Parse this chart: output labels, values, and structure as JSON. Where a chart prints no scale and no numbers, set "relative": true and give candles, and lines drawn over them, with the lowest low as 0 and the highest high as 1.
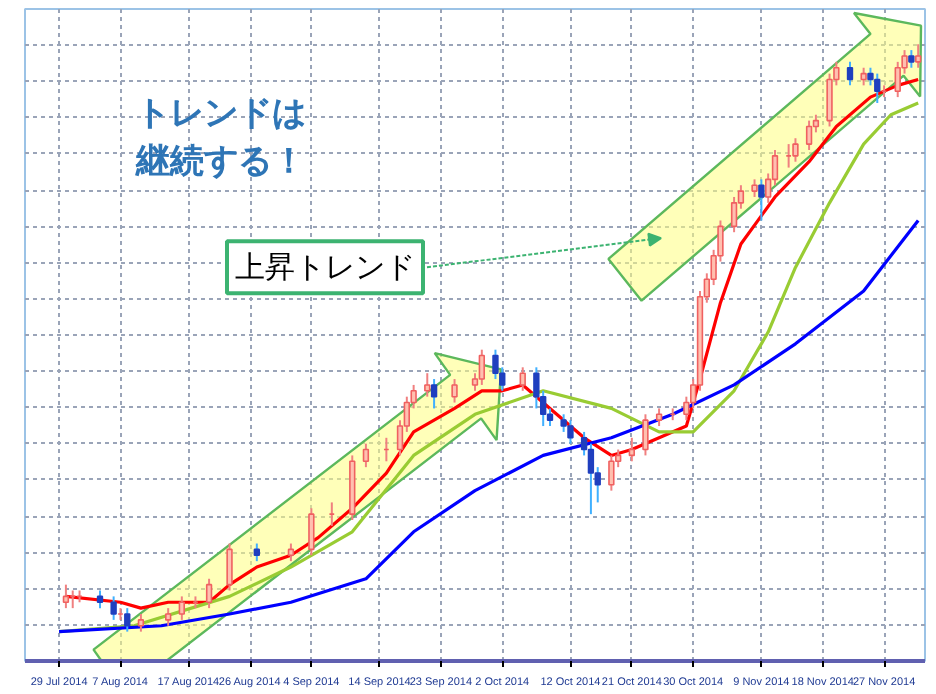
{
  "chart_data": {
    "type": "candlestick",
    "relative": true,
    "grid": true,
    "xlim": [
      "2014-07-24",
      "2014-12-03"
    ],
    "xticks": [
      {
        "value": "2014-07-29",
        "label": "29 Jul 2014"
      },
      {
        "value": "2014-08-07",
        "label": "7 Aug 2014"
      },
      {
        "value": "2014-08-17",
        "label": "17 Aug 2014"
      },
      {
        "value": "2014-08-26",
        "label": "26 Aug 2014"
      },
      {
        "value": "2014-09-04",
        "label": "4 Sep 2014"
      },
      {
        "value": "2014-09-14",
        "label": "14 Sep 2014"
      },
      {
        "value": "2014-09-23",
        "label": "23 Sep 2014"
      },
      {
        "value": "2014-10-02",
        "label": "2 Oct 2014"
      },
      {
        "value": "2014-10-12",
        "label": "12 Oct 2014"
      },
      {
        "value": "2014-10-21",
        "label": "21 Oct 2014"
      },
      {
        "value": "2014-10-30",
        "label": "30 Oct 2014"
      },
      {
        "value": "2014-11-09",
        "label": "9 Nov 2014"
      },
      {
        "value": "2014-11-18",
        "label": "18 Nov 2014"
      },
      {
        "value": "2014-11-27",
        "label": "27 Nov 2014"
      }
    ],
    "x": [
      "2014-07-30",
      "2014-07-31",
      "2014-08-01",
      "2014-08-04",
      "2014-08-06",
      "2014-08-07",
      "2014-08-08",
      "2014-08-10",
      "2014-08-14",
      "2014-08-16",
      "2014-08-18",
      "2014-08-20",
      "2014-08-23",
      "2014-08-27",
      "2014-09-01",
      "2014-09-04",
      "2014-09-07",
      "2014-09-10",
      "2014-09-12",
      "2014-09-15",
      "2014-09-17",
      "2014-09-18",
      "2014-09-19",
      "2014-09-21",
      "2014-09-22",
      "2014-09-25",
      "2014-09-28",
      "2014-09-29",
      "2014-10-01",
      "2014-10-02",
      "2014-10-05",
      "2014-10-07",
      "2014-10-08",
      "2014-10-09",
      "2014-10-11",
      "2014-10-12",
      "2014-10-14",
      "2014-10-15",
      "2014-10-16",
      "2014-10-18",
      "2014-10-19",
      "2014-10-21",
      "2014-10-23",
      "2014-10-25",
      "2014-10-27",
      "2014-10-29",
      "2014-10-30",
      "2014-10-31",
      "2014-11-01",
      "2014-11-02",
      "2014-11-03",
      "2014-11-05",
      "2014-11-06",
      "2014-11-08",
      "2014-11-09",
      "2014-11-10",
      "2014-11-11",
      "2014-11-13",
      "2014-11-14",
      "2014-11-16",
      "2014-11-17",
      "2014-11-19",
      "2014-11-20",
      "2014-11-22",
      "2014-11-24",
      "2014-11-25",
      "2014-11-26",
      "2014-11-27",
      "2014-11-29",
      "2014-11-30",
      "2014-12-01",
      "2014-12-02"
    ],
    "ohlc": [
      [
        0.05,
        0.08,
        0.04,
        0.06
      ],
      [
        0.06,
        0.07,
        0.04,
        0.06
      ],
      [
        0.06,
        0.07,
        0.05,
        0.06
      ],
      [
        0.06,
        0.07,
        0.04,
        0.05
      ],
      [
        0.05,
        0.06,
        0.02,
        0.03
      ],
      [
        0.03,
        0.04,
        0.02,
        0.03
      ],
      [
        0.03,
        0.04,
        0.0,
        0.01
      ],
      [
        0.01,
        0.03,
        0.0,
        0.02
      ],
      [
        0.02,
        0.04,
        0.01,
        0.03
      ],
      [
        0.03,
        0.06,
        0.02,
        0.05
      ],
      [
        0.05,
        0.06,
        0.04,
        0.05
      ],
      [
        0.05,
        0.09,
        0.04,
        0.08
      ],
      [
        0.08,
        0.15,
        0.07,
        0.14
      ],
      [
        0.14,
        0.15,
        0.12,
        0.13
      ],
      [
        0.13,
        0.15,
        0.12,
        0.14
      ],
      [
        0.14,
        0.21,
        0.13,
        0.2
      ],
      [
        0.2,
        0.22,
        0.18,
        0.2
      ],
      [
        0.2,
        0.3,
        0.19,
        0.29
      ],
      [
        0.29,
        0.32,
        0.28,
        0.31
      ],
      [
        0.31,
        0.33,
        0.29,
        0.31
      ],
      [
        0.31,
        0.36,
        0.3,
        0.35
      ],
      [
        0.35,
        0.4,
        0.34,
        0.39
      ],
      [
        0.39,
        0.42,
        0.38,
        0.41
      ],
      [
        0.41,
        0.44,
        0.4,
        0.42
      ],
      [
        0.42,
        0.43,
        0.38,
        0.4
      ],
      [
        0.4,
        0.43,
        0.39,
        0.42
      ],
      [
        0.42,
        0.44,
        0.41,
        0.43
      ],
      [
        0.43,
        0.48,
        0.42,
        0.47
      ],
      [
        0.47,
        0.48,
        0.43,
        0.44
      ],
      [
        0.44,
        0.45,
        0.41,
        0.42
      ],
      [
        0.42,
        0.45,
        0.41,
        0.44
      ],
      [
        0.44,
        0.45,
        0.38,
        0.4
      ],
      [
        0.4,
        0.41,
        0.35,
        0.37
      ],
      [
        0.37,
        0.38,
        0.35,
        0.36
      ],
      [
        0.36,
        0.37,
        0.34,
        0.35
      ],
      [
        0.35,
        0.36,
        0.32,
        0.33
      ],
      [
        0.33,
        0.34,
        0.3,
        0.31
      ],
      [
        0.31,
        0.32,
        0.2,
        0.27
      ],
      [
        0.27,
        0.28,
        0.22,
        0.25
      ],
      [
        0.25,
        0.3,
        0.24,
        0.29
      ],
      [
        0.29,
        0.31,
        0.28,
        0.3
      ],
      [
        0.3,
        0.33,
        0.29,
        0.31
      ],
      [
        0.31,
        0.37,
        0.3,
        0.36
      ],
      [
        0.36,
        0.38,
        0.35,
        0.37
      ],
      [
        0.37,
        0.38,
        0.36,
        0.37
      ],
      [
        0.37,
        0.4,
        0.36,
        0.39
      ],
      [
        0.39,
        0.43,
        0.38,
        0.42
      ],
      [
        0.42,
        0.58,
        0.41,
        0.57
      ],
      [
        0.57,
        0.61,
        0.56,
        0.6
      ],
      [
        0.6,
        0.65,
        0.59,
        0.64
      ],
      [
        0.64,
        0.7,
        0.63,
        0.69
      ],
      [
        0.69,
        0.74,
        0.68,
        0.73
      ],
      [
        0.73,
        0.76,
        0.72,
        0.75
      ],
      [
        0.75,
        0.77,
        0.74,
        0.76
      ],
      [
        0.76,
        0.77,
        0.7,
        0.74
      ],
      [
        0.74,
        0.78,
        0.73,
        0.77
      ],
      [
        0.77,
        0.82,
        0.76,
        0.81
      ],
      [
        0.81,
        0.83,
        0.79,
        0.81
      ],
      [
        0.81,
        0.84,
        0.8,
        0.83
      ],
      [
        0.83,
        0.87,
        0.82,
        0.86
      ],
      [
        0.86,
        0.88,
        0.85,
        0.87
      ],
      [
        0.87,
        0.95,
        0.86,
        0.94
      ],
      [
        0.94,
        0.97,
        0.93,
        0.96
      ],
      [
        0.96,
        0.97,
        0.93,
        0.94
      ],
      [
        0.94,
        0.96,
        0.93,
        0.95
      ],
      [
        0.95,
        0.96,
        0.93,
        0.94
      ],
      [
        0.94,
        0.95,
        0.9,
        0.92
      ],
      [
        0.92,
        0.93,
        0.91,
        0.92
      ],
      [
        0.92,
        0.97,
        0.91,
        0.96
      ],
      [
        0.96,
        0.99,
        0.95,
        0.98
      ],
      [
        0.98,
        0.99,
        0.96,
        0.97
      ],
      [
        0.97,
        1.0,
        0.96,
        0.98
      ]
    ],
    "series": [
      {
        "type": "line",
        "color": "#ff0000",
        "x": [
          "2014-07-30",
          "2014-08-07",
          "2014-08-10",
          "2014-08-14",
          "2014-08-20",
          "2014-08-23",
          "2014-08-27",
          "2014-09-01",
          "2014-09-05",
          "2014-09-10",
          "2014-09-15",
          "2014-09-19",
          "2014-09-25",
          "2014-09-29",
          "2014-10-02",
          "2014-10-05",
          "2014-10-09",
          "2014-10-14",
          "2014-10-18",
          "2014-10-21",
          "2014-10-25",
          "2014-10-29",
          "2014-10-31",
          "2014-11-03",
          "2014-11-06",
          "2014-11-11",
          "2014-11-16",
          "2014-11-20",
          "2014-11-25",
          "2014-11-29",
          "2014-12-02"
        ],
        "values": [
          0.06,
          0.05,
          0.04,
          0.05,
          0.05,
          0.08,
          0.11,
          0.13,
          0.16,
          0.21,
          0.27,
          0.34,
          0.38,
          0.41,
          0.41,
          0.42,
          0.38,
          0.33,
          0.3,
          0.31,
          0.33,
          0.35,
          0.43,
          0.56,
          0.66,
          0.74,
          0.8,
          0.86,
          0.91,
          0.93,
          0.94
        ]
      },
      {
        "type": "line",
        "color": "#99cc33",
        "x": [
          "2014-07-29",
          "2014-08-09",
          "2014-08-23",
          "2014-09-01",
          "2014-09-10",
          "2014-09-19",
          "2014-09-28",
          "2014-10-08",
          "2014-10-18",
          "2014-10-25",
          "2014-10-30",
          "2014-11-05",
          "2014-11-10",
          "2014-11-14",
          "2014-11-19",
          "2014-11-24",
          "2014-11-28",
          "2014-12-02"
        ],
        "values": [
          0.0,
          0.01,
          0.06,
          0.11,
          0.17,
          0.3,
          0.37,
          0.41,
          0.38,
          0.34,
          0.34,
          0.41,
          0.51,
          0.62,
          0.73,
          0.83,
          0.88,
          0.9
        ]
      },
      {
        "type": "line",
        "color": "#0000ff",
        "x": [
          "2014-07-29",
          "2014-08-13",
          "2014-08-23",
          "2014-09-01",
          "2014-09-12",
          "2014-09-19",
          "2014-09-28",
          "2014-10-08",
          "2014-10-18",
          "2014-10-27",
          "2014-11-05",
          "2014-11-14",
          "2014-11-24",
          "2014-12-02"
        ],
        "values": [
          0.0,
          0.01,
          0.03,
          0.05,
          0.09,
          0.17,
          0.24,
          0.3,
          0.33,
          0.37,
          0.42,
          0.49,
          0.58,
          0.7
        ]
      }
    ],
    "annotations": [
      "トレンドは継続する！",
      "上昇トレンド"
    ]
  }
}
